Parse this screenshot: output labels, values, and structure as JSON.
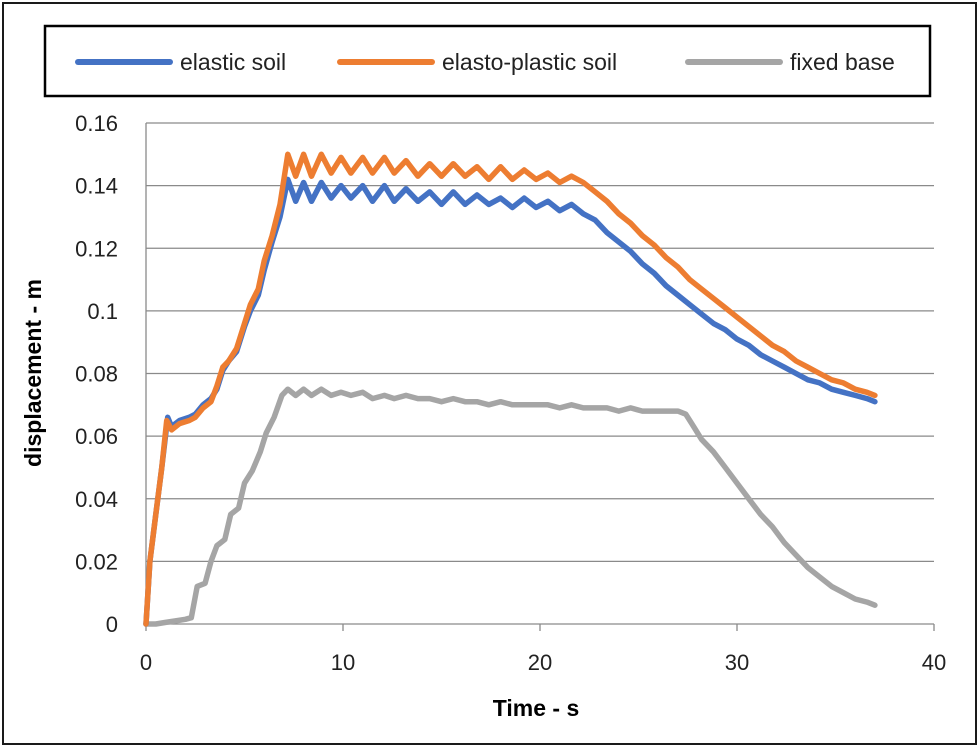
{
  "chart_data": {
    "type": "line",
    "title": "",
    "xlabel": "Time - s",
    "ylabel": "displacement - m",
    "xlim": [
      0,
      40
    ],
    "ylim": [
      0,
      0.16
    ],
    "x_ticks": [
      0,
      10,
      20,
      30,
      40
    ],
    "y_ticks": [
      0,
      0.02,
      0.04,
      0.06,
      0.08,
      0.1,
      0.12,
      0.14,
      0.16
    ],
    "y_tick_labels": [
      "0",
      "0.02",
      "0.04",
      "0.06",
      "0.08",
      "0.1",
      "0.12",
      "0.14",
      "0.16"
    ],
    "grid": "horizontal",
    "legend_position": "top",
    "series": [
      {
        "name": "elastic soil",
        "color": "#4472C4",
        "points": [
          [
            0,
            0
          ],
          [
            0.2,
            0.02
          ],
          [
            0.5,
            0.035
          ],
          [
            0.8,
            0.05
          ],
          [
            1.1,
            0.066
          ],
          [
            1.3,
            0.063
          ],
          [
            1.7,
            0.065
          ],
          [
            2.2,
            0.066
          ],
          [
            2.5,
            0.067
          ],
          [
            2.9,
            0.07
          ],
          [
            3.3,
            0.072
          ],
          [
            3.6,
            0.075
          ],
          [
            3.9,
            0.081
          ],
          [
            4.2,
            0.084
          ],
          [
            4.6,
            0.087
          ],
          [
            5.0,
            0.095
          ],
          [
            5.3,
            0.1
          ],
          [
            5.7,
            0.105
          ],
          [
            6.0,
            0.113
          ],
          [
            6.4,
            0.122
          ],
          [
            6.8,
            0.13
          ],
          [
            7.2,
            0.142
          ],
          [
            7.6,
            0.135
          ],
          [
            8.0,
            0.141
          ],
          [
            8.4,
            0.135
          ],
          [
            8.9,
            0.141
          ],
          [
            9.4,
            0.136
          ],
          [
            9.9,
            0.14
          ],
          [
            10.4,
            0.136
          ],
          [
            11.0,
            0.14
          ],
          [
            11.5,
            0.135
          ],
          [
            12.1,
            0.14
          ],
          [
            12.6,
            0.135
          ],
          [
            13.2,
            0.139
          ],
          [
            13.8,
            0.135
          ],
          [
            14.4,
            0.138
          ],
          [
            15.0,
            0.134
          ],
          [
            15.6,
            0.138
          ],
          [
            16.2,
            0.134
          ],
          [
            16.8,
            0.137
          ],
          [
            17.4,
            0.134
          ],
          [
            18.0,
            0.136
          ],
          [
            18.6,
            0.133
          ],
          [
            19.2,
            0.136
          ],
          [
            19.8,
            0.133
          ],
          [
            20.4,
            0.135
          ],
          [
            21.0,
            0.132
          ],
          [
            21.6,
            0.134
          ],
          [
            22.2,
            0.131
          ],
          [
            22.8,
            0.129
          ],
          [
            23.4,
            0.125
          ],
          [
            24.0,
            0.122
          ],
          [
            24.6,
            0.119
          ],
          [
            25.2,
            0.115
          ],
          [
            25.8,
            0.112
          ],
          [
            26.4,
            0.108
          ],
          [
            27.0,
            0.105
          ],
          [
            27.6,
            0.102
          ],
          [
            28.2,
            0.099
          ],
          [
            28.8,
            0.096
          ],
          [
            29.4,
            0.094
          ],
          [
            30.0,
            0.091
          ],
          [
            30.6,
            0.089
          ],
          [
            31.2,
            0.086
          ],
          [
            31.8,
            0.084
          ],
          [
            32.4,
            0.082
          ],
          [
            33.0,
            0.08
          ],
          [
            33.6,
            0.078
          ],
          [
            34.2,
            0.077
          ],
          [
            34.8,
            0.075
          ],
          [
            35.4,
            0.074
          ],
          [
            36.0,
            0.073
          ],
          [
            36.6,
            0.072
          ],
          [
            37.0,
            0.071
          ]
        ]
      },
      {
        "name": "elasto-plastic soil",
        "color": "#ED7D31",
        "points": [
          [
            0,
            0
          ],
          [
            0.2,
            0.02
          ],
          [
            0.5,
            0.035
          ],
          [
            0.8,
            0.05
          ],
          [
            1.05,
            0.065
          ],
          [
            1.3,
            0.062
          ],
          [
            1.7,
            0.064
          ],
          [
            2.2,
            0.065
          ],
          [
            2.5,
            0.066
          ],
          [
            2.9,
            0.069
          ],
          [
            3.3,
            0.071
          ],
          [
            3.6,
            0.076
          ],
          [
            3.9,
            0.082
          ],
          [
            4.2,
            0.084
          ],
          [
            4.6,
            0.088
          ],
          [
            5.0,
            0.096
          ],
          [
            5.3,
            0.102
          ],
          [
            5.7,
            0.107
          ],
          [
            6.0,
            0.116
          ],
          [
            6.4,
            0.124
          ],
          [
            6.8,
            0.134
          ],
          [
            7.2,
            0.15
          ],
          [
            7.6,
            0.143
          ],
          [
            8.0,
            0.15
          ],
          [
            8.4,
            0.143
          ],
          [
            8.9,
            0.15
          ],
          [
            9.4,
            0.144
          ],
          [
            9.9,
            0.149
          ],
          [
            10.4,
            0.144
          ],
          [
            11.0,
            0.149
          ],
          [
            11.5,
            0.144
          ],
          [
            12.1,
            0.149
          ],
          [
            12.6,
            0.144
          ],
          [
            13.2,
            0.148
          ],
          [
            13.8,
            0.143
          ],
          [
            14.4,
            0.147
          ],
          [
            15.0,
            0.143
          ],
          [
            15.6,
            0.147
          ],
          [
            16.2,
            0.143
          ],
          [
            16.8,
            0.146
          ],
          [
            17.4,
            0.142
          ],
          [
            18.0,
            0.146
          ],
          [
            18.6,
            0.142
          ],
          [
            19.2,
            0.145
          ],
          [
            19.8,
            0.142
          ],
          [
            20.4,
            0.144
          ],
          [
            21.0,
            0.141
          ],
          [
            21.6,
            0.143
          ],
          [
            22.2,
            0.141
          ],
          [
            22.8,
            0.138
          ],
          [
            23.4,
            0.135
          ],
          [
            24.0,
            0.131
          ],
          [
            24.6,
            0.128
          ],
          [
            25.2,
            0.124
          ],
          [
            25.8,
            0.121
          ],
          [
            26.4,
            0.117
          ],
          [
            27.0,
            0.114
          ],
          [
            27.6,
            0.11
          ],
          [
            28.2,
            0.107
          ],
          [
            28.8,
            0.104
          ],
          [
            29.4,
            0.101
          ],
          [
            30.0,
            0.098
          ],
          [
            30.6,
            0.095
          ],
          [
            31.2,
            0.092
          ],
          [
            31.8,
            0.089
          ],
          [
            32.4,
            0.087
          ],
          [
            33.0,
            0.084
          ],
          [
            33.6,
            0.082
          ],
          [
            34.2,
            0.08
          ],
          [
            34.8,
            0.078
          ],
          [
            35.4,
            0.077
          ],
          [
            36.0,
            0.075
          ],
          [
            36.6,
            0.074
          ],
          [
            37.0,
            0.073
          ]
        ]
      },
      {
        "name": "fixed base",
        "color": "#A5A5A5",
        "points": [
          [
            0,
            0
          ],
          [
            0.5,
            0
          ],
          [
            1.0,
            0.0005
          ],
          [
            1.5,
            0.001
          ],
          [
            2.0,
            0.0015
          ],
          [
            2.3,
            0.002
          ],
          [
            2.6,
            0.012
          ],
          [
            3.0,
            0.013
          ],
          [
            3.3,
            0.02
          ],
          [
            3.6,
            0.025
          ],
          [
            4.0,
            0.027
          ],
          [
            4.3,
            0.035
          ],
          [
            4.7,
            0.037
          ],
          [
            5.0,
            0.045
          ],
          [
            5.4,
            0.049
          ],
          [
            5.8,
            0.055
          ],
          [
            6.1,
            0.061
          ],
          [
            6.5,
            0.066
          ],
          [
            6.9,
            0.073
          ],
          [
            7.2,
            0.075
          ],
          [
            7.6,
            0.073
          ],
          [
            8.0,
            0.075
          ],
          [
            8.4,
            0.073
          ],
          [
            8.9,
            0.075
          ],
          [
            9.4,
            0.073
          ],
          [
            9.9,
            0.074
          ],
          [
            10.4,
            0.073
          ],
          [
            11.0,
            0.074
          ],
          [
            11.5,
            0.072
          ],
          [
            12.1,
            0.073
          ],
          [
            12.6,
            0.072
          ],
          [
            13.2,
            0.073
          ],
          [
            13.8,
            0.072
          ],
          [
            14.4,
            0.072
          ],
          [
            15.0,
            0.071
          ],
          [
            15.6,
            0.072
          ],
          [
            16.2,
            0.071
          ],
          [
            16.8,
            0.071
          ],
          [
            17.4,
            0.07
          ],
          [
            18.0,
            0.071
          ],
          [
            18.6,
            0.07
          ],
          [
            19.2,
            0.07
          ],
          [
            19.8,
            0.07
          ],
          [
            20.4,
            0.07
          ],
          [
            21.0,
            0.069
          ],
          [
            21.6,
            0.07
          ],
          [
            22.2,
            0.069
          ],
          [
            22.8,
            0.069
          ],
          [
            23.4,
            0.069
          ],
          [
            24.0,
            0.068
          ],
          [
            24.6,
            0.069
          ],
          [
            25.2,
            0.068
          ],
          [
            25.8,
            0.068
          ],
          [
            26.4,
            0.068
          ],
          [
            27.0,
            0.068
          ],
          [
            27.4,
            0.067
          ],
          [
            27.8,
            0.063
          ],
          [
            28.2,
            0.059
          ],
          [
            28.8,
            0.055
          ],
          [
            29.4,
            0.05
          ],
          [
            30.0,
            0.045
          ],
          [
            30.6,
            0.04
          ],
          [
            31.2,
            0.035
          ],
          [
            31.8,
            0.031
          ],
          [
            32.4,
            0.026
          ],
          [
            33.0,
            0.022
          ],
          [
            33.6,
            0.018
          ],
          [
            34.2,
            0.015
          ],
          [
            34.8,
            0.012
          ],
          [
            35.4,
            0.01
          ],
          [
            36.0,
            0.008
          ],
          [
            36.6,
            0.007
          ],
          [
            37.0,
            0.006
          ]
        ]
      }
    ]
  }
}
